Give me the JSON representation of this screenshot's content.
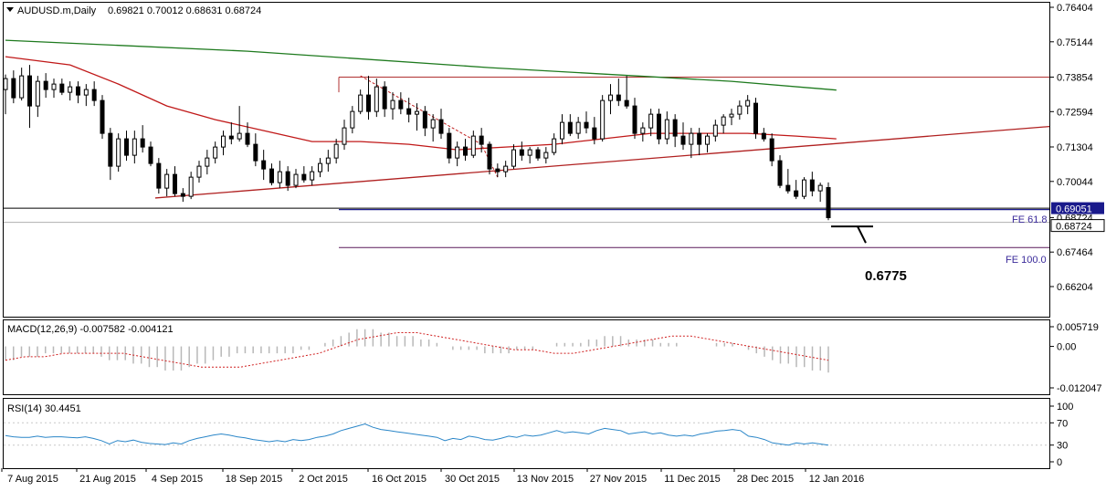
{
  "chart_data": {
    "type": "candlestick",
    "title": "AUDUSD.m,Daily",
    "ohlc_header": "0.69821 0.70012 0.68631 0.68724",
    "main_y_ticks": [
      "0.76404",
      "0.75144",
      "0.73854",
      "0.72594",
      "0.71304",
      "0.70044",
      "0.68724",
      "0.67464",
      "0.66204"
    ],
    "current_price_label": "0.68724",
    "fe618_price_label": "0.69051",
    "fe618_text": "FE 61.8",
    "fe100_text": "FE 100.0",
    "target_text": "0.6775",
    "fe618_level": 0.69051,
    "fe100_level": 0.6763,
    "resistance_level": 0.73854,
    "support_level": 0.6944,
    "x_labels": [
      "7 Aug 2015",
      "21 Aug 2015",
      "4 Sep 2015",
      "18 Sep 2015",
      "2 Oct 2015",
      "16 Oct 2015",
      "30 Oct 2015",
      "13 Nov 2015",
      "27 Nov 2015",
      "11 Dec 2015",
      "28 Dec 2015",
      "12 Jan 2016"
    ],
    "candles": [
      [
        0.734,
        0.7395,
        0.725,
        0.738
      ],
      [
        0.738,
        0.741,
        0.729,
        0.731
      ],
      [
        0.731,
        0.742,
        0.73,
        0.739
      ],
      [
        0.739,
        0.743,
        0.72,
        0.728
      ],
      [
        0.728,
        0.739,
        0.724,
        0.737
      ],
      [
        0.737,
        0.74,
        0.731,
        0.734
      ],
      [
        0.734,
        0.738,
        0.731,
        0.736
      ],
      [
        0.736,
        0.738,
        0.732,
        0.733
      ],
      [
        0.733,
        0.737,
        0.73,
        0.735
      ],
      [
        0.735,
        0.737,
        0.729,
        0.732
      ],
      [
        0.732,
        0.736,
        0.728,
        0.734
      ],
      [
        0.734,
        0.737,
        0.728,
        0.73
      ],
      [
        0.73,
        0.732,
        0.716,
        0.718
      ],
      [
        0.718,
        0.72,
        0.701,
        0.706
      ],
      [
        0.706,
        0.718,
        0.704,
        0.716
      ],
      [
        0.716,
        0.719,
        0.708,
        0.71
      ],
      [
        0.71,
        0.719,
        0.707,
        0.716
      ],
      [
        0.716,
        0.721,
        0.711,
        0.713
      ],
      [
        0.713,
        0.715,
        0.706,
        0.707
      ],
      [
        0.707,
        0.709,
        0.696,
        0.698
      ],
      [
        0.698,
        0.705,
        0.695,
        0.703
      ],
      [
        0.703,
        0.706,
        0.695,
        0.696
      ],
      [
        0.696,
        0.698,
        0.693,
        0.695
      ],
      [
        0.695,
        0.704,
        0.694,
        0.702
      ],
      [
        0.702,
        0.708,
        0.7,
        0.706
      ],
      [
        0.706,
        0.712,
        0.703,
        0.709
      ],
      [
        0.709,
        0.715,
        0.707,
        0.713
      ],
      [
        0.713,
        0.719,
        0.71,
        0.717
      ],
      [
        0.717,
        0.722,
        0.714,
        0.716
      ],
      [
        0.716,
        0.728,
        0.715,
        0.718
      ],
      [
        0.718,
        0.722,
        0.713,
        0.714
      ],
      [
        0.714,
        0.718,
        0.706,
        0.708
      ],
      [
        0.708,
        0.712,
        0.701,
        0.705
      ],
      [
        0.705,
        0.707,
        0.699,
        0.7
      ],
      [
        0.7,
        0.708,
        0.698,
        0.704
      ],
      [
        0.704,
        0.706,
        0.697,
        0.699
      ],
      [
        0.699,
        0.705,
        0.698,
        0.703
      ],
      [
        0.703,
        0.706,
        0.7,
        0.701
      ],
      [
        0.701,
        0.706,
        0.699,
        0.704
      ],
      [
        0.704,
        0.709,
        0.702,
        0.707
      ],
      [
        0.707,
        0.712,
        0.704,
        0.709
      ],
      [
        0.709,
        0.716,
        0.707,
        0.714
      ],
      [
        0.714,
        0.723,
        0.712,
        0.72
      ],
      [
        0.72,
        0.728,
        0.718,
        0.726
      ],
      [
        0.726,
        0.734,
        0.725,
        0.732
      ],
      [
        0.732,
        0.739,
        0.723,
        0.726
      ],
      [
        0.726,
        0.738,
        0.724,
        0.735
      ],
      [
        0.735,
        0.737,
        0.724,
        0.727
      ],
      [
        0.727,
        0.733,
        0.723,
        0.73
      ],
      [
        0.73,
        0.733,
        0.725,
        0.727
      ],
      [
        0.727,
        0.731,
        0.722,
        0.725
      ],
      [
        0.725,
        0.729,
        0.719,
        0.726
      ],
      [
        0.726,
        0.728,
        0.717,
        0.72
      ],
      [
        0.72,
        0.725,
        0.715,
        0.723
      ],
      [
        0.723,
        0.727,
        0.716,
        0.718
      ],
      [
        0.718,
        0.72,
        0.707,
        0.709
      ],
      [
        0.709,
        0.715,
        0.706,
        0.713
      ],
      [
        0.713,
        0.716,
        0.708,
        0.71
      ],
      [
        0.71,
        0.719,
        0.709,
        0.717
      ],
      [
        0.717,
        0.72,
        0.711,
        0.714
      ],
      [
        0.714,
        0.715,
        0.703,
        0.705
      ],
      [
        0.705,
        0.707,
        0.702,
        0.704
      ],
      [
        0.704,
        0.708,
        0.702,
        0.706
      ],
      [
        0.706,
        0.714,
        0.705,
        0.712
      ],
      [
        0.712,
        0.715,
        0.708,
        0.71
      ],
      [
        0.71,
        0.713,
        0.707,
        0.712
      ],
      [
        0.712,
        0.713,
        0.708,
        0.709
      ],
      [
        0.709,
        0.713,
        0.707,
        0.711
      ],
      [
        0.711,
        0.718,
        0.71,
        0.716
      ],
      [
        0.716,
        0.725,
        0.714,
        0.722
      ],
      [
        0.722,
        0.725,
        0.717,
        0.718
      ],
      [
        0.718,
        0.724,
        0.716,
        0.722
      ],
      [
        0.722,
        0.726,
        0.718,
        0.72
      ],
      [
        0.72,
        0.724,
        0.714,
        0.716
      ],
      [
        0.716,
        0.732,
        0.715,
        0.73
      ],
      [
        0.73,
        0.736,
        0.725,
        0.732
      ],
      [
        0.732,
        0.738,
        0.728,
        0.73
      ],
      [
        0.73,
        0.739,
        0.727,
        0.728
      ],
      [
        0.728,
        0.731,
        0.716,
        0.718
      ],
      [
        0.718,
        0.722,
        0.715,
        0.72
      ],
      [
        0.72,
        0.727,
        0.717,
        0.725
      ],
      [
        0.725,
        0.727,
        0.714,
        0.716
      ],
      [
        0.716,
        0.726,
        0.714,
        0.723
      ],
      [
        0.723,
        0.725,
        0.713,
        0.717
      ],
      [
        0.717,
        0.722,
        0.712,
        0.714
      ],
      [
        0.714,
        0.72,
        0.709,
        0.718
      ],
      [
        0.718,
        0.72,
        0.71,
        0.714
      ],
      [
        0.714,
        0.718,
        0.711,
        0.717
      ],
      [
        0.717,
        0.723,
        0.715,
        0.721
      ],
      [
        0.721,
        0.725,
        0.718,
        0.724
      ],
      [
        0.724,
        0.727,
        0.721,
        0.725
      ],
      [
        0.725,
        0.73,
        0.723,
        0.728
      ],
      [
        0.728,
        0.732,
        0.725,
        0.73
      ],
      [
        0.729,
        0.731,
        0.716,
        0.718
      ],
      [
        0.718,
        0.72,
        0.715,
        0.716
      ],
      [
        0.716,
        0.718,
        0.706,
        0.708
      ],
      [
        0.708,
        0.71,
        0.698,
        0.699
      ],
      [
        0.699,
        0.705,
        0.696,
        0.697
      ],
      [
        0.697,
        0.701,
        0.694,
        0.695
      ],
      [
        0.695,
        0.702,
        0.694,
        0.701
      ],
      [
        0.701,
        0.704,
        0.695,
        0.697
      ],
      [
        0.697,
        0.7,
        0.693,
        0.699
      ],
      [
        0.6982,
        0.7001,
        0.6863,
        0.6872
      ]
    ],
    "ma_slow": [
      [
        0,
        0.752
      ],
      [
        30,
        0.748
      ],
      [
        60,
        0.742
      ],
      [
        90,
        0.737
      ],
      [
        103,
        0.7338
      ]
    ],
    "ma_fast": [
      [
        0,
        0.746
      ],
      [
        8,
        0.743
      ],
      [
        14,
        0.736
      ],
      [
        20,
        0.728
      ],
      [
        26,
        0.723
      ],
      [
        32,
        0.719
      ],
      [
        38,
        0.715
      ],
      [
        44,
        0.715
      ],
      [
        50,
        0.714
      ],
      [
        56,
        0.712
      ],
      [
        62,
        0.713
      ],
      [
        68,
        0.714
      ],
      [
        74,
        0.716
      ],
      [
        80,
        0.718
      ],
      [
        86,
        0.718
      ],
      [
        92,
        0.718
      ],
      [
        98,
        0.717
      ],
      [
        103,
        0.716
      ]
    ],
    "macd_ticks": [
      "0.005719",
      "0.00",
      "-0.012047"
    ],
    "macd_label": "MACD(12,26,9) -0.007582 -0.004121",
    "macd_hist": [
      -0.004,
      -0.004,
      -0.003,
      -0.003,
      -0.003,
      -0.002,
      -0.002,
      -0.002,
      -0.002,
      -0.002,
      -0.002,
      -0.002,
      -0.003,
      -0.004,
      -0.004,
      -0.004,
      -0.005,
      -0.005,
      -0.006,
      -0.006,
      -0.007,
      -0.007,
      -0.007,
      -0.006,
      -0.005,
      -0.005,
      -0.004,
      -0.003,
      -0.003,
      -0.002,
      -0.002,
      -0.002,
      -0.002,
      -0.002,
      -0.002,
      -0.002,
      -0.002,
      -0.001,
      -0.001,
      0.0,
      0.001,
      0.002,
      0.003,
      0.004,
      0.005,
      0.005,
      0.005,
      0.004,
      0.004,
      0.003,
      0.003,
      0.003,
      0.002,
      0.002,
      0.001,
      0.0,
      -0.001,
      -0.001,
      -0.001,
      -0.001,
      -0.002,
      -0.002,
      -0.002,
      -0.002,
      -0.001,
      -0.001,
      -0.001,
      0.0,
      0.0,
      0.001,
      0.001,
      0.001,
      0.001,
      0.002,
      0.002,
      0.003,
      0.003,
      0.003,
      0.002,
      0.002,
      0.002,
      0.002,
      0.001,
      0.001,
      0.001,
      0.0,
      0.0,
      0.0,
      0.0,
      0.001,
      0.001,
      0.001,
      0.0,
      -0.001,
      -0.002,
      -0.003,
      -0.004,
      -0.005,
      -0.005,
      -0.006,
      -0.006,
      -0.007,
      -0.007,
      -0.0076
    ],
    "macd_signal": [
      -0.004,
      -0.003,
      -0.003,
      -0.002,
      -0.002,
      -0.002,
      -0.002,
      -0.003,
      -0.004,
      -0.005,
      -0.006,
      -0.006,
      -0.006,
      -0.005,
      -0.004,
      -0.003,
      -0.002,
      0.0,
      0.002,
      0.003,
      0.004,
      0.004,
      0.003,
      0.002,
      0.001,
      0.0,
      -0.001,
      -0.001,
      -0.002,
      -0.002,
      -0.001,
      0.0,
      0.001,
      0.002,
      0.003,
      0.003,
      0.002,
      0.001,
      0.0,
      -0.001,
      -0.002,
      -0.003,
      -0.004
    ],
    "rsi_ticks": [
      "100",
      "70",
      "30",
      "0"
    ],
    "rsi_label": "RSI(14) 30.4451",
    "rsi": [
      47,
      45,
      44,
      44,
      46,
      44,
      45,
      45,
      44,
      43,
      45,
      42,
      38,
      32,
      38,
      36,
      39,
      35,
      33,
      32,
      31,
      34,
      32,
      38,
      42,
      45,
      48,
      50,
      48,
      45,
      43,
      40,
      38,
      36,
      38,
      36,
      40,
      38,
      40,
      44,
      46,
      50,
      56,
      60,
      64,
      68,
      62,
      58,
      56,
      54,
      52,
      50,
      48,
      46,
      44,
      38,
      42,
      40,
      46,
      44,
      40,
      39,
      42,
      46,
      44,
      48,
      46,
      48,
      52,
      56,
      52,
      54,
      52,
      50,
      56,
      60,
      58,
      56,
      50,
      52,
      54,
      50,
      52,
      48,
      46,
      48,
      46,
      50,
      52,
      55,
      56,
      58,
      56,
      46,
      44,
      40,
      34,
      32,
      30,
      34,
      32,
      34,
      32,
      30
    ]
  }
}
